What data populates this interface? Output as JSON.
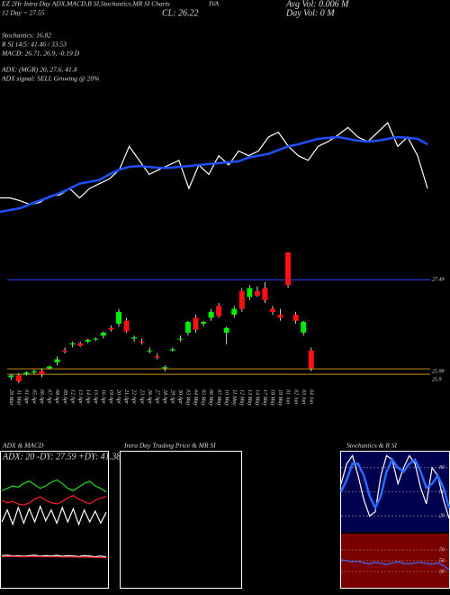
{
  "chart_data": [
    {
      "type": "line",
      "annotations": [
        "EZ 2Hr Intra Day ADX,MACD,B SI,Stochastics,MR SI Charts",
        "IVA",
        "12 Day = 27.55",
        "CL: 26.22",
        "Avg Vol: 0.006  M",
        "Day Vol: 0  M",
        "Stochastics: 16.82",
        "R  SI 14/5: 41.46 / 33.53",
        "MACD: 26.71, 26.9, -0.19 D",
        "ADX: (MGR) 20, 27.6, 41.4",
        "ADX  signal: SELL Growing @ 20%"
      ],
      "ylim": [
        24,
        30
      ],
      "series": [
        {
          "color": "#ffffff",
          "values": [
            24.69,
            24.69,
            24.55,
            24.37,
            24.46,
            24.78,
            24.83,
            25.15,
            24.69,
            25.15,
            25.39,
            25.62,
            26.08,
            27.23,
            26.54,
            25.85,
            26.08,
            26.31,
            26.54,
            25.15,
            26.31,
            25.85,
            26.77,
            26.31,
            27.0,
            26.77,
            27.0,
            27.69,
            27.93,
            27.23,
            26.77,
            26.54,
            27.23,
            27.46,
            27.79,
            28.16,
            27.69,
            27.46,
            27.93,
            28.39,
            27.23,
            27.69,
            26.77,
            25.15
          ]
        },
        {
          "color": "#1e50ff",
          "values": [
            24.0,
            24.09,
            24.18,
            24.37,
            24.55,
            24.74,
            24.92,
            25.15,
            25.39,
            25.48,
            25.57,
            25.85,
            26.08,
            26.22,
            26.26,
            26.22,
            26.17,
            26.17,
            26.22,
            26.26,
            26.31,
            26.36,
            26.4,
            26.45,
            26.49,
            26.68,
            26.77,
            26.86,
            27.05,
            27.23,
            27.33,
            27.46,
            27.6,
            27.65,
            27.69,
            27.6,
            27.51,
            27.46,
            27.51,
            27.6,
            27.69,
            27.65,
            27.6,
            27.33
          ]
        }
      ]
    },
    {
      "type": "candlestick",
      "categories": [
        "29 Mar",
        "31 Mar",
        "01 Apr",
        "05 Apr",
        "06 Apr",
        "07 Apr",
        "08 Apr",
        "09 Apr",
        "12 Apr",
        "13 Apr",
        "14 Apr",
        "15 Apr",
        "16 Apr",
        "19 Apr",
        "20 Apr",
        "21 Apr",
        "22 Apr",
        "23 Apr",
        "26 Apr",
        "27 Apr",
        "28 Apr",
        "29 Apr",
        "30 Apr",
        "03 May",
        "04 May",
        "05 May",
        "06 May",
        "07 May",
        "10 May",
        "11 May",
        "12 May",
        "13 May",
        "14 May",
        "17 May",
        "18 May",
        "19 May",
        "01 Jun",
        "02 Jun",
        "03 Jun",
        "04 Jun"
      ],
      "open": [
        25.85,
        25.88,
        25.9,
        25.93,
        25.95,
        26.0,
        26.1,
        26.3,
        26.4,
        26.42,
        26.45,
        26.5,
        26.55,
        26.68,
        26.75,
        26.8,
        26.5,
        26.45,
        26.3,
        26.2,
        26.0,
        26.3,
        26.5,
        26.6,
        26.85,
        26.75,
        26.85,
        27.05,
        26.6,
        26.9,
        27.3,
        27.2,
        27.3,
        27.35,
        27.0,
        26.9,
        27.95,
        26.9,
        26.6,
        26.3
      ],
      "high": [
        25.9,
        25.92,
        25.95,
        25.98,
        26.0,
        26.05,
        26.2,
        26.35,
        26.45,
        26.45,
        26.5,
        26.52,
        26.62,
        26.72,
        27.0,
        26.85,
        26.55,
        26.5,
        26.35,
        26.25,
        26.05,
        26.35,
        26.55,
        26.8,
        26.9,
        26.8,
        27.0,
        27.1,
        26.7,
        27.05,
        27.35,
        27.4,
        27.38,
        27.45,
        27.05,
        27.0,
        27.95,
        26.95,
        26.8,
        26.35
      ],
      "low": [
        25.8,
        25.75,
        25.88,
        25.9,
        25.85,
        25.98,
        26.05,
        26.25,
        26.35,
        26.36,
        26.42,
        26.46,
        26.5,
        26.62,
        26.7,
        26.6,
        26.45,
        26.4,
        26.25,
        26.15,
        25.95,
        26.28,
        26.45,
        26.55,
        26.6,
        26.7,
        26.8,
        26.85,
        26.4,
        26.85,
        26.95,
        27.15,
        27.2,
        27.1,
        26.9,
        26.8,
        27.35,
        26.75,
        26.55,
        25.95
      ],
      "close": [
        25.88,
        25.78,
        25.93,
        25.95,
        25.9,
        26.03,
        26.15,
        26.28,
        26.42,
        26.38,
        26.48,
        26.5,
        26.6,
        26.65,
        26.95,
        26.62,
        26.52,
        26.43,
        26.3,
        26.18,
        26.02,
        26.32,
        26.5,
        26.78,
        26.65,
        26.78,
        26.95,
        26.88,
        26.68,
        27.0,
        27.0,
        27.35,
        27.22,
        27.15,
        26.95,
        26.85,
        27.4,
        26.8,
        26.78,
        26.0
      ],
      "up_color": "#00ee00",
      "down_color": "#ff1111",
      "ylim": [
        25.75,
        27.95
      ],
      "yticks": [
        27.49,
        25.99,
        25.9
      ],
      "grid_colors": [
        "#2b44ff",
        "#c88a00",
        "#c88a00"
      ]
    },
    {
      "type": "line",
      "title": "ADX  & MACD",
      "subtitle": "ADX: 20  -DY: 27.59  +DY: 41.38",
      "ylim": [
        0,
        60
      ],
      "series": [
        {
          "color": "#22dd22",
          "values": [
            38,
            40,
            42,
            41,
            44,
            46,
            43,
            40,
            42,
            45,
            47,
            44,
            40,
            38,
            41,
            44,
            46,
            42,
            40,
            37
          ]
        },
        {
          "color": "#ff2222",
          "values": [
            30,
            28,
            29,
            27,
            26,
            28,
            31,
            33,
            30,
            28,
            27,
            29,
            32,
            34,
            31,
            29,
            27,
            30,
            32,
            33
          ]
        },
        {
          "color": "#ffffff",
          "values": [
            12,
            22,
            10,
            24,
            11,
            23,
            12,
            25,
            13,
            22,
            11,
            24,
            12,
            23,
            10,
            22,
            12,
            21,
            11,
            20
          ]
        }
      ]
    },
    {
      "type": "line",
      "ylim": [
        -1,
        1
      ],
      "series": [
        {
          "color": "#ffffff",
          "values": [
            0.5,
            0.52,
            0.48,
            0.5,
            0.46,
            0.5,
            0.52,
            0.47,
            0.5,
            0.48,
            0.51,
            0.46,
            0.5,
            0.48,
            0.45,
            0.5,
            0.47,
            0.44,
            0.48,
            0.42
          ]
        },
        {
          "color": "#ff2222",
          "values": [
            0.44,
            0.45,
            0.46,
            0.45,
            0.44,
            0.45,
            0.46,
            0.45,
            0.44,
            0.45,
            0.44,
            0.43,
            0.44,
            0.43,
            0.42,
            0.43,
            0.42,
            0.41,
            0.4,
            0.39
          ]
        }
      ]
    },
    {
      "type": "line",
      "title": "Intra  Day Trading Price  & MR SI"
    },
    {
      "type": "line",
      "title": "Stochastics  & R SI",
      "background": "#000050",
      "ylim": [
        0,
        100
      ],
      "yticks": [
        20,
        50,
        80
      ],
      "series": [
        {
          "color": "#ffffff",
          "values": [
            60,
            85,
            95,
            70,
            40,
            20,
            25,
            70,
            95,
            90,
            60,
            80,
            95,
            85,
            55,
            35,
            80,
            70,
            40,
            17
          ]
        },
        {
          "color": "#2a6cff",
          "values": [
            50,
            65,
            85,
            85,
            70,
            45,
            30,
            45,
            75,
            90,
            80,
            75,
            85,
            90,
            75,
            55,
            60,
            70,
            55,
            30
          ]
        }
      ]
    },
    {
      "type": "line",
      "background": "#7a0000",
      "ylim": [
        0,
        100
      ],
      "yticks": [
        30,
        50,
        70
      ],
      "series": [
        {
          "color": "#3b6cff",
          "values": [
            52,
            50,
            48,
            49,
            46,
            44,
            47,
            45,
            43,
            46,
            48,
            45,
            44,
            46,
            47,
            45,
            44,
            46,
            41,
            33
          ]
        }
      ]
    }
  ]
}
